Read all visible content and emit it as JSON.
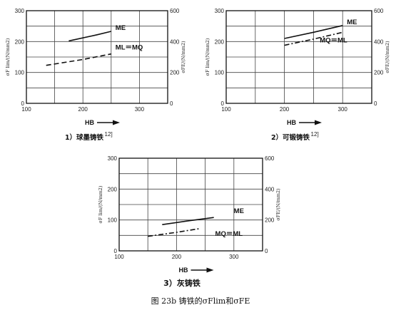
{
  "figure_caption": "图 23b 铸铁的σFlim和σFE",
  "chart_data": [
    {
      "type": "line",
      "subtitle": "1）球墨铸铁",
      "subtitle_ref": "12]",
      "xlabel": "HB",
      "ylabel_left": "σF lim/(N/mm2)",
      "ylabel_right": "σFE/(N/mm2)",
      "xlim": [
        100,
        350
      ],
      "ylim": [
        0,
        300
      ],
      "ylim_right": [
        0,
        600
      ],
      "x_ticks": [
        100,
        200,
        300
      ],
      "y_ticks": [
        0,
        100,
        200,
        300
      ],
      "y_right_ticks": [
        0,
        200,
        400,
        600
      ],
      "grid": true,
      "series": [
        {
          "name": "ME",
          "style": "solid",
          "x": [
            175,
            225,
            250
          ],
          "y": [
            202,
            222,
            233
          ]
        },
        {
          "name": "ML＝MQ",
          "style": "dashed",
          "x": [
            135,
            200,
            250
          ],
          "y": [
            123,
            142,
            160
          ]
        }
      ]
    },
    {
      "type": "line",
      "subtitle": "2）可锻铸铁",
      "subtitle_ref": "12]",
      "xlabel": "HB",
      "ylabel_left": "σF lim/(N/mm2)",
      "ylabel_right": "σFE/(N/mm2)",
      "xlim": [
        100,
        350
      ],
      "ylim": [
        0,
        300
      ],
      "ylim_right": [
        0,
        600
      ],
      "x_ticks": [
        100,
        200,
        300
      ],
      "y_ticks": [
        0,
        100,
        200,
        300
      ],
      "y_right_ticks": [
        0,
        200,
        400,
        600
      ],
      "grid": true,
      "series": [
        {
          "name": "ME",
          "style": "solid",
          "x": [
            200,
            250,
            300
          ],
          "y": [
            210,
            230,
            252
          ]
        },
        {
          "name": "MQ＝ML",
          "style": "dashdot",
          "x": [
            200,
            250,
            300
          ],
          "y": [
            188,
            208,
            230
          ]
        }
      ]
    },
    {
      "type": "line",
      "subtitle": "3）灰铸铁",
      "xlabel": "HB",
      "ylabel_left": "σF lim/(N/mm2)",
      "ylabel_right": "σFE/(N/mm2)",
      "xlim": [
        100,
        350
      ],
      "ylim": [
        0,
        300
      ],
      "ylim_right": [
        0,
        600
      ],
      "x_ticks": [
        100,
        200,
        300
      ],
      "y_ticks": [
        0,
        100,
        200,
        300
      ],
      "y_right_ticks": [
        0,
        200,
        400,
        600
      ],
      "grid": true,
      "series": [
        {
          "name": "ME",
          "style": "solid",
          "x": [
            175,
            220,
            265
          ],
          "y": [
            85,
            97,
            108
          ]
        },
        {
          "name": "MQ＝ML",
          "style": "dashdot",
          "x": [
            150,
            200,
            240
          ],
          "y": [
            47,
            60,
            72
          ]
        }
      ]
    }
  ]
}
